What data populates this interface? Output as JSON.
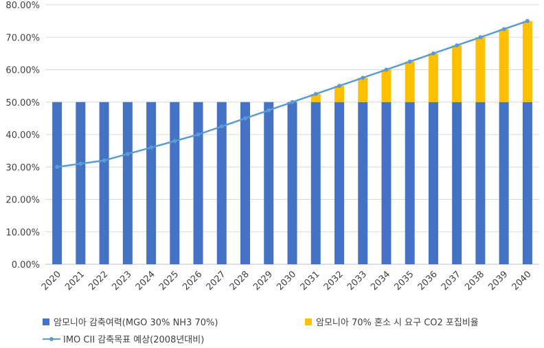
{
  "chart_data": {
    "type": "bar",
    "stacked": true,
    "categories": [
      "2020",
      "2021",
      "2022",
      "2023",
      "2024",
      "2025",
      "2026",
      "2027",
      "2028",
      "2029",
      "2030",
      "2031",
      "2032",
      "2033",
      "2034",
      "2035",
      "2036",
      "2037",
      "2038",
      "2039",
      "2040"
    ],
    "series": [
      {
        "name": "암모니아 감축여력(MGO 30% NH3 70%)",
        "kind": "bar",
        "color": "#4472C4",
        "values": [
          50,
          50,
          50,
          50,
          50,
          50,
          50,
          50,
          50,
          50,
          50,
          50,
          50,
          50,
          50,
          50,
          50,
          50,
          50,
          50,
          50
        ]
      },
      {
        "name": "암모니아 70% 혼소 시 요구 CO2 포집비율",
        "kind": "bar",
        "color": "#FFC000",
        "values": [
          0,
          0,
          0,
          0,
          0,
          0,
          0,
          0,
          0,
          0,
          0,
          2.5,
          5,
          7.5,
          10,
          12.5,
          15,
          17.5,
          20,
          22.5,
          25
        ]
      },
      {
        "name": "IMO CII 감축목표 예상(2008년대비)",
        "kind": "line",
        "color": "#5B9BD5",
        "values": [
          30,
          31,
          32,
          34,
          36,
          38,
          40,
          42.5,
          45,
          47.5,
          50,
          52.5,
          55,
          57.5,
          60,
          62.5,
          65,
          67.5,
          70,
          72.5,
          75
        ]
      }
    ],
    "ylim": [
      0,
      80
    ],
    "yticks": [
      "0.00%",
      "10.00%",
      "20.00%",
      "30.00%",
      "40.00%",
      "50.00%",
      "60.00%",
      "70.00%",
      "80.00%"
    ],
    "xlabel": "",
    "ylabel": "",
    "grid": true,
    "legend_position": "bottom"
  }
}
